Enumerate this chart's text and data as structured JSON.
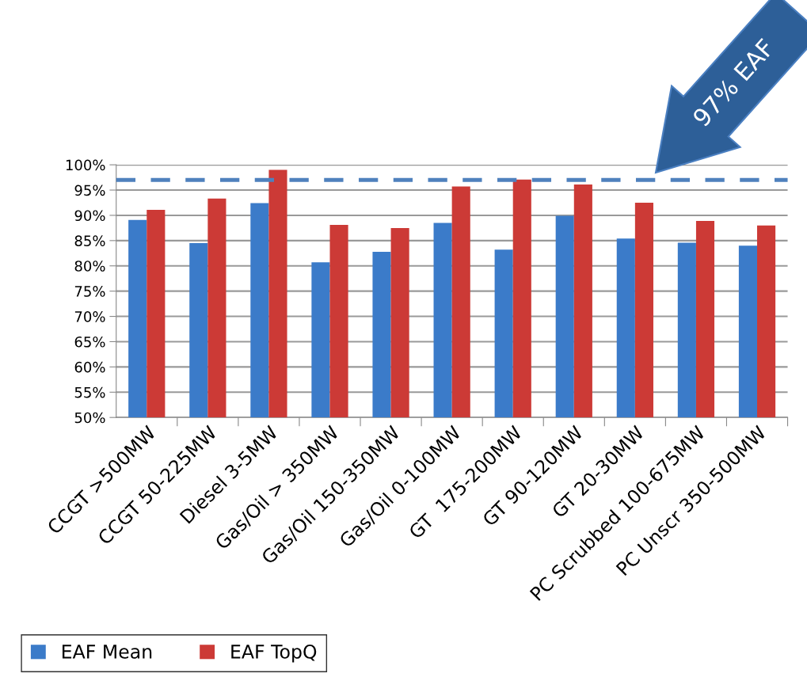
{
  "chart_data": {
    "type": "bar",
    "categories": [
      "CCGT >500MW",
      "CCGT 50-225MW",
      "Diesel 3-5MW",
      "Gas/Oil > 350MW",
      "Gas/Oil 150-350MW",
      "Gas/Oil 0-100MW",
      "GT  175-200MW",
      "GT 90-120MW",
      "GT 20-30MW",
      "PC Scrubbed 100-675MW",
      "PC Unscr 350-500MW"
    ],
    "series": [
      {
        "name": "EAF Mean",
        "color": "#3b7bc9",
        "values": [
          89.1,
          84.5,
          92.4,
          80.7,
          82.8,
          88.5,
          83.2,
          89.9,
          85.4,
          84.6,
          84.0
        ]
      },
      {
        "name": "EAF TopQ",
        "color": "#cc3a36",
        "values": [
          91.1,
          93.3,
          99.0,
          88.1,
          87.5,
          95.7,
          97.1,
          96.1,
          92.5,
          88.9,
          88.0
        ]
      }
    ],
    "ylim": [
      50,
      100
    ],
    "yticks": [
      {
        "value": 50,
        "label": "50%"
      },
      {
        "value": 55,
        "label": "55%"
      },
      {
        "value": 60,
        "label": "60%"
      },
      {
        "value": 65,
        "label": "65%"
      },
      {
        "value": 70,
        "label": "70%"
      },
      {
        "value": 75,
        "label": "75%"
      },
      {
        "value": 80,
        "label": "80%"
      },
      {
        "value": 85,
        "label": "85%"
      },
      {
        "value": 90,
        "label": "90%"
      },
      {
        "value": 95,
        "label": "95%"
      },
      {
        "value": 100,
        "label": "100%"
      }
    ],
    "grid": "y",
    "legend": "bottom left",
    "annotations": [
      "97% EAF"
    ],
    "ref_lines": [
      {
        "axis": "y",
        "value": 97,
        "color": "#4f81bd",
        "line_style": "dashed"
      }
    ]
  }
}
